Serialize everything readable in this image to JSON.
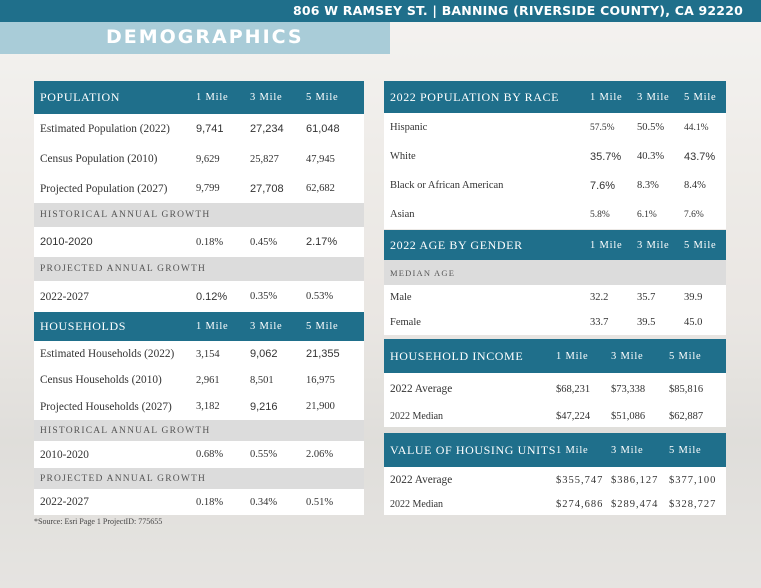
{
  "address": "806 W RAMSEY ST. | BANNING (RIVERSIDE COUNTY), CA 92220",
  "page_title": "DEMOGRAPHICS",
  "cols": [
    "1 Mile",
    "3 Mile",
    "5 Mile"
  ],
  "population": {
    "title": "POPULATION",
    "rows": [
      {
        "label": "Estimated Population (2022)",
        "v": [
          "9,741",
          "27,234",
          "61,048"
        ]
      },
      {
        "label": "Census Population (2010)",
        "v": [
          "9,629",
          "25,827",
          "47,945"
        ]
      },
      {
        "label": "Projected Population (2027)",
        "v": [
          "9,799",
          "27,708",
          "62,682"
        ]
      }
    ],
    "hist_title": "HISTORICAL ANNUAL GROWTH",
    "hist": {
      "label": "2010-2020",
      "v": [
        "0.18%",
        "0.45%",
        "2.17%"
      ]
    },
    "proj_title": "PROJECTED ANNUAL GROWTH",
    "proj": {
      "label": "2022-2027",
      "v": [
        "0.12%",
        "0.35%",
        "0.53%"
      ]
    }
  },
  "households": {
    "title": "HOUSEHOLDS",
    "rows": [
      {
        "label": "Estimated Households (2022)",
        "v": [
          "3,154",
          "9,062",
          "21,355"
        ]
      },
      {
        "label": "Census Households (2010)",
        "v": [
          "2,961",
          "8,501",
          "16,975"
        ]
      },
      {
        "label": "Projected Households (2027)",
        "v": [
          "3,182",
          "9,216",
          "21,900"
        ]
      }
    ],
    "hist_title": "HISTORICAL ANNUAL GROWTH",
    "hist": {
      "label": "2010-2020",
      "v": [
        "0.68%",
        "0.55%",
        "2.06%"
      ]
    },
    "proj_title": "PROJECTED ANNUAL GROWTH",
    "proj": {
      "label": "2022-2027",
      "v": [
        "0.18%",
        "0.34%",
        "0.51%"
      ]
    }
  },
  "race": {
    "title": "2022 POPULATION BY RACE",
    "rows": [
      {
        "label": "Hispanic",
        "v": [
          "57.5%",
          "50.5%",
          "44.1%"
        ]
      },
      {
        "label": "White",
        "v": [
          "35.7%",
          "40.3%",
          "43.7%"
        ]
      },
      {
        "label": "Black or African American",
        "v": [
          "7.6%",
          "8.3%",
          "8.4%"
        ]
      },
      {
        "label": "Asian",
        "v": [
          "5.8%",
          "6.1%",
          "7.6%"
        ]
      }
    ]
  },
  "age": {
    "title": "2022 AGE BY GENDER",
    "sub_title": "MEDIAN AGE",
    "rows": [
      {
        "label": "Male",
        "v": [
          "32.2",
          "35.7",
          "39.9"
        ]
      },
      {
        "label": "Female",
        "v": [
          "33.7",
          "39.5",
          "45.0"
        ]
      }
    ]
  },
  "income": {
    "title": "HOUSEHOLD INCOME",
    "rows": [
      {
        "label": "2022 Average",
        "v": [
          "$68,231",
          "$73,338",
          "$85,816"
        ]
      },
      {
        "label": "2022 Median",
        "v": [
          "$47,224",
          "$51,086",
          "$62,887"
        ]
      }
    ]
  },
  "housing": {
    "title": "VALUE OF HOUSING UNITS",
    "rows": [
      {
        "label": "2022 Average",
        "v": [
          "$355,747",
          "$386,127",
          "$377,100"
        ]
      },
      {
        "label": "2022 Median",
        "v": [
          "$274,686",
          "$289,474",
          "$328,727"
        ]
      }
    ]
  },
  "source": "*Source: Esri Page 1 ProjectID: 775655"
}
